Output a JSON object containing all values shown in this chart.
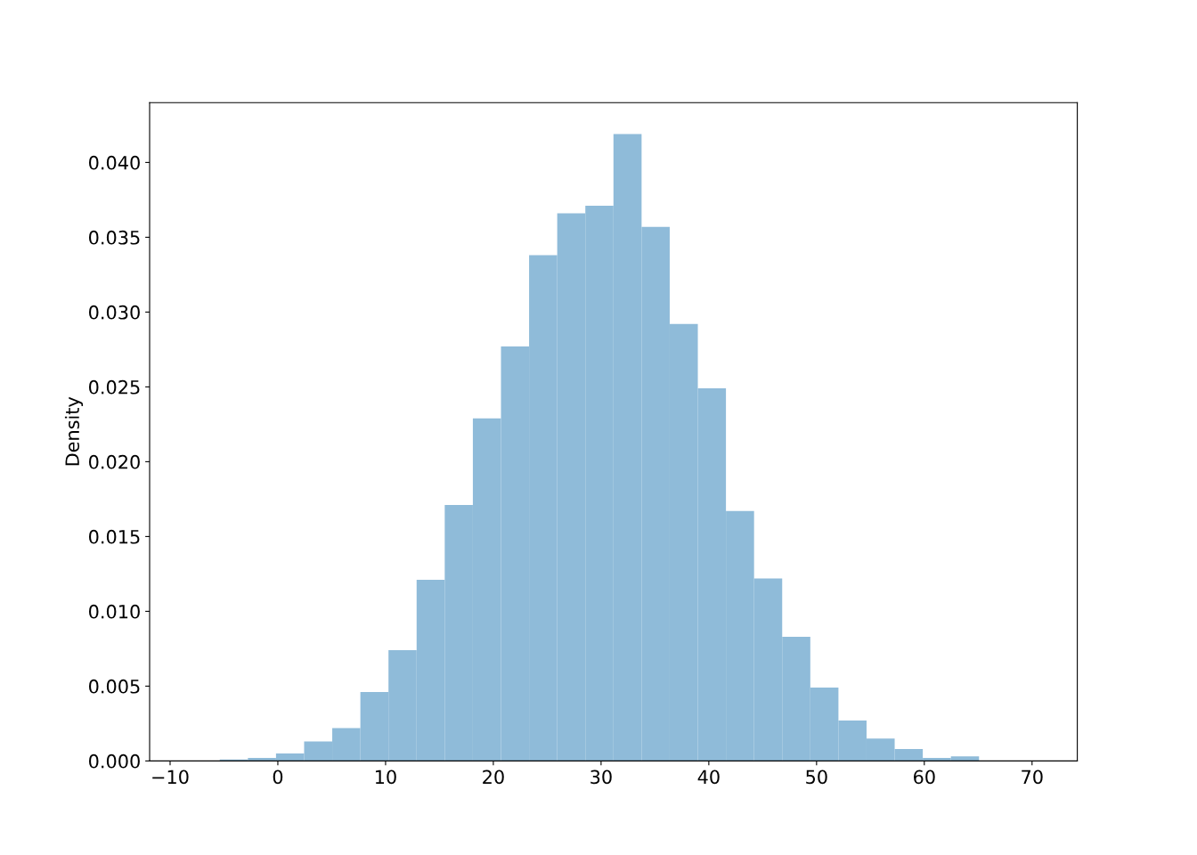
{
  "chart_data": {
    "type": "histogram",
    "ylabel": "Density",
    "color": "#8fbbd9",
    "bins": [
      -8.0,
      -5.39,
      -2.78,
      -0.17,
      2.44,
      5.05,
      7.66,
      10.27,
      12.88,
      15.49,
      18.1,
      20.71,
      23.32,
      25.93,
      28.54,
      31.15,
      33.76,
      36.37,
      38.98,
      41.59,
      44.2,
      46.81,
      49.42,
      52.03,
      54.64,
      57.25,
      59.86,
      62.47,
      65.08,
      67.69,
      70.3
    ],
    "values": [
      0,
      0.0001,
      0.0002,
      0.0005,
      0.0013,
      0.0022,
      0.0046,
      0.0074,
      0.0121,
      0.0171,
      0.0229,
      0.0277,
      0.0338,
      0.0366,
      0.0371,
      0.0419,
      0.0357,
      0.0292,
      0.0249,
      0.0167,
      0.0122,
      0.0083,
      0.0049,
      0.0027,
      0.0015,
      0.0008,
      0.0002,
      0.0003,
      0,
      0
    ],
    "xlim": [
      -11.9,
      74.2
    ],
    "ylim": [
      0,
      0.044
    ],
    "xticks": [
      {
        "value": -10,
        "label": "−10"
      },
      0,
      10,
      20,
      30,
      40,
      50,
      60,
      70
    ],
    "yticks": [
      {
        "value": 0,
        "label": "0.000"
      },
      {
        "value": 0.005,
        "label": "0.005"
      },
      {
        "value": 0.01,
        "label": "0.010"
      },
      {
        "value": 0.015,
        "label": "0.015"
      },
      {
        "value": 0.02,
        "label": "0.020"
      },
      {
        "value": 0.025,
        "label": "0.025"
      },
      {
        "value": 0.03,
        "label": "0.030"
      },
      {
        "value": 0.035,
        "label": "0.035"
      },
      {
        "value": 0.04,
        "label": "0.040"
      }
    ],
    "grid": false
  }
}
